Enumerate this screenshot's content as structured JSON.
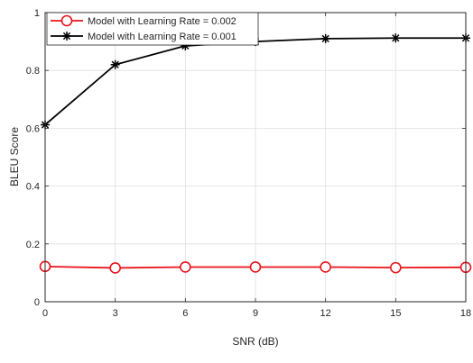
{
  "chart_data": {
    "type": "line",
    "title": "",
    "xlabel": "SNR (dB)",
    "ylabel": "BLEU Score",
    "x": [
      0,
      3,
      6,
      9,
      12,
      15,
      18
    ],
    "xticks": [
      "0",
      "3",
      "6",
      "9",
      "12",
      "15",
      "18"
    ],
    "yticks": [
      "0",
      "0.2",
      "0.4",
      "0.6",
      "0.8",
      "1"
    ],
    "xlim": [
      0,
      18
    ],
    "ylim": [
      0,
      1
    ],
    "grid": true,
    "legend_position": "top-left",
    "series": [
      {
        "name": "Model with Learning Rate = 0.002",
        "color": "#e8141c",
        "marker": "circle",
        "values": [
          0.122,
          0.117,
          0.12,
          0.12,
          0.12,
          0.118,
          0.119
        ]
      },
      {
        "name": "Model with Learning Rate = 0.001",
        "color": "#000000",
        "marker": "asterisk",
        "values": [
          0.612,
          0.82,
          0.885,
          0.9,
          0.91,
          0.912,
          0.912
        ]
      }
    ]
  }
}
